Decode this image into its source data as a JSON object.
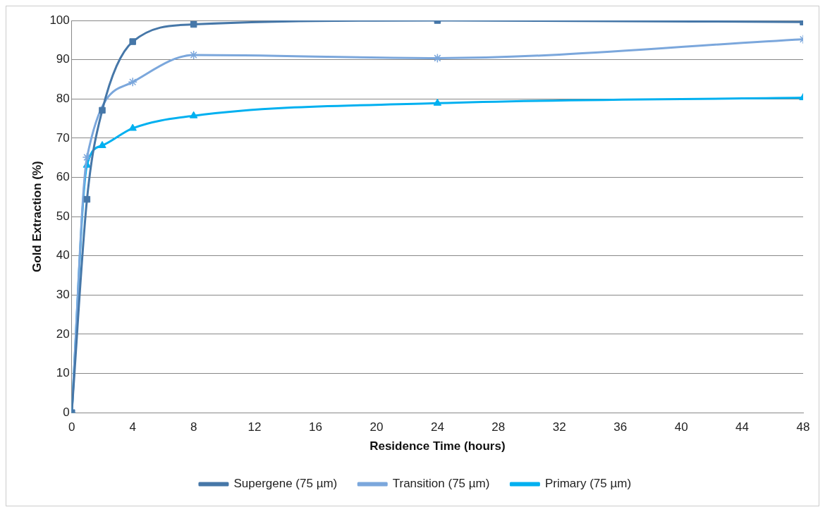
{
  "chart_data": {
    "type": "line",
    "xlabel": "Residence Time (hours)",
    "ylabel": "Gold Extraction (%)",
    "xlim": [
      0,
      48
    ],
    "xticks": [
      0,
      4,
      8,
      12,
      16,
      20,
      24,
      28,
      32,
      36,
      40,
      44,
      48
    ],
    "ylim": [
      0,
      100
    ],
    "yticks": [
      0,
      10,
      20,
      30,
      40,
      50,
      60,
      70,
      80,
      90,
      100
    ],
    "grid": "y",
    "legend": "bottom",
    "series": [
      {
        "name": "Supergene (75 µm)",
        "color": "#4677a8",
        "marker": "square",
        "x": [
          0,
          1,
          2,
          4,
          8,
          24,
          48
        ],
        "values": [
          0,
          54.4,
          77.1,
          94.6,
          99,
          100,
          99.6
        ]
      },
      {
        "name": "Transition (75 µm)",
        "color": "#7ba7dc",
        "marker": "cross",
        "x": [
          0,
          1,
          2,
          4,
          8,
          24,
          48
        ],
        "values": [
          0,
          65.1,
          null,
          84.3,
          91.2,
          90.4,
          95.2
        ]
      },
      {
        "name": "Primary (75 µm)",
        "color": "#00b0f0",
        "marker": "triangle",
        "x": [
          0,
          1,
          2,
          4,
          8,
          24,
          48
        ],
        "values": [
          0,
          63.1,
          68.1,
          72.5,
          75.7,
          78.9,
          80.3
        ]
      }
    ]
  }
}
